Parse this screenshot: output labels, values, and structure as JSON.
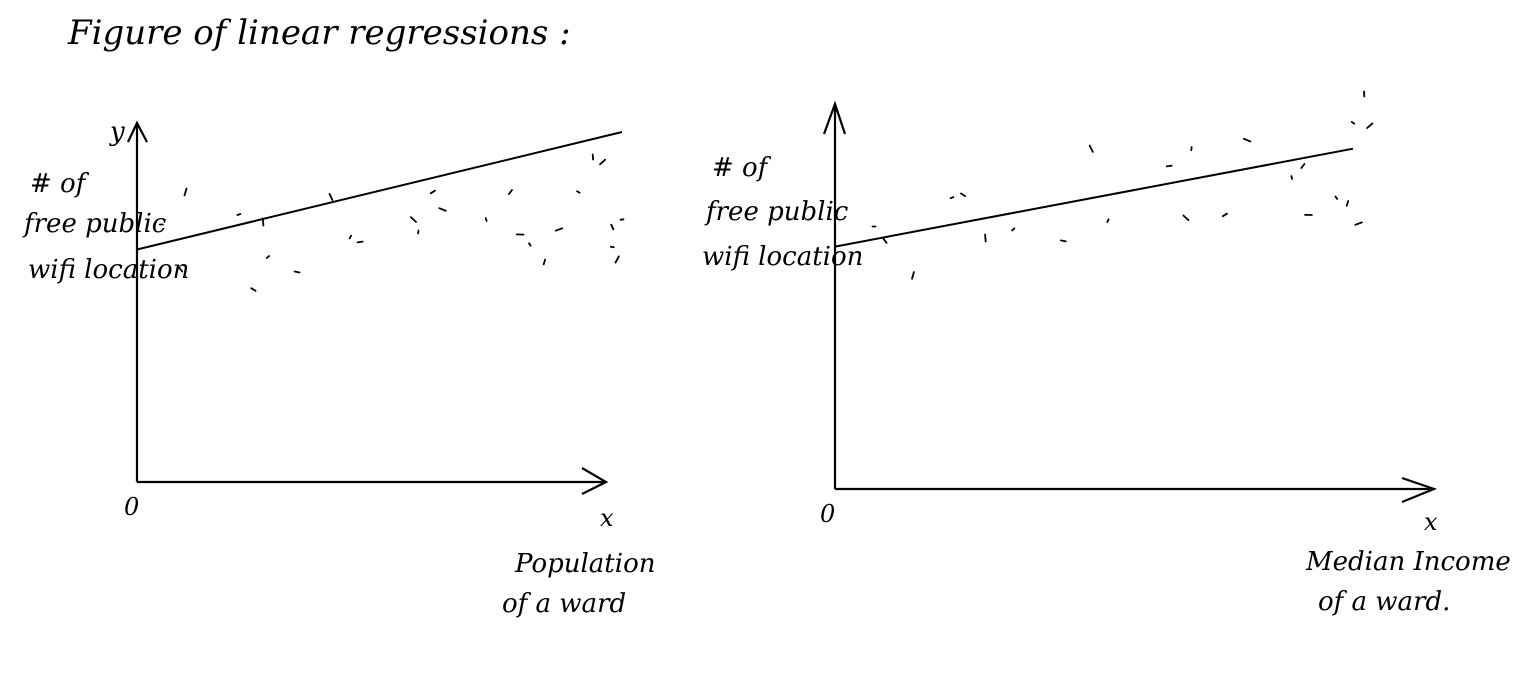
{
  "title": "Figure of linear regressions :",
  "chart_data": [
    {
      "type": "scatter",
      "y_axis_letter": "y",
      "ylabel_lines": [
        "# of",
        "free public",
        "wifi location"
      ],
      "x_axis_letter": "x",
      "xlabel_lines": [
        "Population",
        "of a ward"
      ],
      "origin_label": "0",
      "xlim": [
        0,
        100
      ],
      "ylim": [
        0,
        100
      ],
      "points": [
        [
          5,
          63
        ],
        [
          9,
          45
        ],
        [
          10,
          76
        ],
        [
          21,
          67
        ],
        [
          24,
          37
        ],
        [
          26,
          64
        ],
        [
          27,
          50
        ],
        [
          33,
          44
        ],
        [
          40,
          74
        ],
        [
          44,
          58
        ],
        [
          46,
          56
        ],
        [
          57,
          65
        ],
        [
          58,
          60
        ],
        [
          61,
          76
        ],
        [
          63,
          69
        ],
        [
          72,
          65
        ],
        [
          77,
          76
        ],
        [
          79,
          59
        ],
        [
          81,
          55
        ],
        [
          84,
          48
        ],
        [
          87,
          61
        ],
        [
          91,
          76
        ],
        [
          94,
          90
        ],
        [
          96,
          88
        ],
        [
          98,
          54
        ],
        [
          98,
          62
        ],
        [
          99,
          49
        ],
        [
          100,
          65
        ]
      ],
      "regression": {
        "x": [
          0,
          100
        ],
        "y": [
          53,
          100
        ]
      }
    },
    {
      "type": "scatter",
      "ylabel_lines": [
        "# of",
        "free public",
        "wifi location"
      ],
      "x_axis_letter": "x",
      "xlabel_lines": [
        "Median Income",
        "of a ward."
      ],
      "origin_label": "0",
      "xlim": [
        0,
        100
      ],
      "ylim": [
        0,
        100
      ],
      "points": [
        [
          7,
          54
        ],
        [
          9,
          49
        ],
        [
          14,
          37
        ],
        [
          21,
          64
        ],
        [
          23,
          65
        ],
        [
          27,
          50
        ],
        [
          32,
          53
        ],
        [
          41,
          49
        ],
        [
          46,
          81
        ],
        [
          49,
          56
        ],
        [
          60,
          75
        ],
        [
          63,
          57
        ],
        [
          64,
          81
        ],
        [
          70,
          58
        ],
        [
          74,
          84
        ],
        [
          82,
          71
        ],
        [
          84,
          75
        ],
        [
          85,
          58
        ],
        [
          90,
          64
        ],
        [
          92,
          62
        ],
        [
          94,
          55
        ],
        [
          93,
          90
        ],
        [
          95,
          100
        ],
        [
          96,
          89
        ]
      ],
      "regression": {
        "x": [
          0,
          93
        ],
        "y": [
          47,
          81
        ]
      }
    }
  ]
}
